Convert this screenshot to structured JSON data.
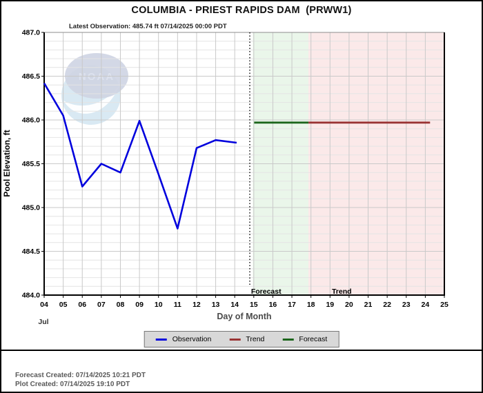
{
  "header": {
    "title": "COLUMBIA - PRIEST RAPIDS DAM  (PRWW1)",
    "latest_observation": "Latest Observation: 485.74 ft 07/14/2025 00:00 PDT"
  },
  "colors": {
    "observation": "#0000dd",
    "trend": "#993333",
    "forecast": "#1b651b",
    "forecast_band": "#eaf6ea",
    "trend_band": "#fbe9e9",
    "grid_major": "#c9c9c9",
    "grid_minor": "#e4e4e4",
    "axis_frame": "#000000",
    "axis_title": "#4a4a4a"
  },
  "legend": {
    "items": [
      {
        "label": "Observation",
        "color_key": "observation"
      },
      {
        "label": "Trend",
        "color_key": "trend"
      },
      {
        "label": "Forecast",
        "color_key": "forecast"
      }
    ]
  },
  "footer": {
    "forecast_created": "Forecast Created: 07/14/2025 10:21 PDT",
    "plot_created": "Plot Created: 07/14/2025 19:10 PDT"
  },
  "chart_data": {
    "type": "line",
    "title": "COLUMBIA - PRIEST RAPIDS DAM  (PRWW1)",
    "xlabel": "Day of Month",
    "ylabel": "Pool Elevation, ft",
    "month_label": "Jul",
    "xlim": [
      4,
      25
    ],
    "ylim": [
      484.0,
      487.0
    ],
    "y_major_step": 0.5,
    "y_minor_step": 0.1,
    "x_tick_labels": [
      "04",
      "05",
      "06",
      "07",
      "08",
      "09",
      "10",
      "11",
      "12",
      "13",
      "14",
      "15",
      "16",
      "17",
      "18",
      "19",
      "20",
      "21",
      "22",
      "23",
      "24",
      "25"
    ],
    "y_tick_labels": [
      "484.0",
      "484.5",
      "485.0",
      "485.5",
      "486.0",
      "486.5",
      "487.0"
    ],
    "now_line_day": 14.79,
    "bands": [
      {
        "name": "forecast-zone",
        "from_day": 14.95,
        "to_day": 17.87,
        "color_key": "forecast_band"
      },
      {
        "name": "trend-zone",
        "from_day": 17.87,
        "to_day": 25,
        "color_key": "trend_band"
      }
    ],
    "series": [
      {
        "name": "Observation",
        "color_key": "observation",
        "width": 2.6,
        "points": [
          {
            "day": 4,
            "value": 486.42
          },
          {
            "day": 5,
            "value": 486.05
          },
          {
            "day": 6,
            "value": 485.24
          },
          {
            "day": 7,
            "value": 485.5
          },
          {
            "day": 8,
            "value": 485.4
          },
          {
            "day": 9,
            "value": 485.99
          },
          {
            "day": 10,
            "value": 485.38
          },
          {
            "day": 11,
            "value": 484.76
          },
          {
            "day": 12,
            "value": 485.68
          },
          {
            "day": 13,
            "value": 485.77
          },
          {
            "day": 14.1,
            "value": 485.74
          }
        ]
      },
      {
        "name": "Forecast",
        "color_key": "forecast",
        "width": 2.8,
        "points": [
          {
            "day": 15.02,
            "value": 485.97
          },
          {
            "day": 17.87,
            "value": 485.97
          }
        ]
      },
      {
        "name": "Trend",
        "color_key": "trend",
        "width": 2.8,
        "points": [
          {
            "day": 17.87,
            "value": 485.97
          },
          {
            "day": 24.25,
            "value": 485.97
          }
        ]
      }
    ],
    "annotations": [
      {
        "text": "Forecast",
        "day": 14.82,
        "align": "start"
      },
      {
        "text": "Trend",
        "day": 19.06,
        "align": "start"
      }
    ]
  }
}
